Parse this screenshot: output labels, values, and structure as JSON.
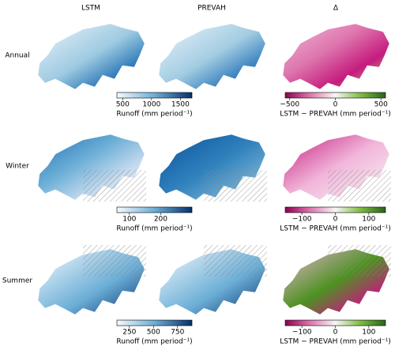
{
  "column_titles": [
    "LSTM",
    "PREVAH",
    "Δ"
  ],
  "rows": [
    {
      "label": "Annual",
      "runoff_colorbar": {
        "label": "Runoff (mm period⁻¹)",
        "lim": [
          400,
          1700
        ],
        "ticks": [
          500,
          1000,
          1500
        ]
      },
      "delta_colorbar": {
        "label": "LSTM − PREVAH (mm period⁻¹)",
        "lim": [
          -550,
          550
        ],
        "ticks": [
          {
            "value": -500,
            "label": "−500"
          },
          0,
          500
        ]
      }
    },
    {
      "label": "Winter",
      "runoff_colorbar": {
        "label": "Runoff (mm period⁻¹)",
        "lim": [
          60,
          300
        ],
        "ticks": [
          100,
          200
        ]
      },
      "delta_colorbar": {
        "label": "LSTM − PREVAH (mm period⁻¹)",
        "lim": [
          -150,
          150
        ],
        "ticks": [
          {
            "value": -100,
            "label": "−100"
          },
          0,
          100
        ]
      }
    },
    {
      "label": "Summer",
      "runoff_colorbar": {
        "label": "Runoff (mm period⁻¹)",
        "lim": [
          120,
          900
        ],
        "ticks": [
          250,
          500,
          750
        ]
      },
      "delta_colorbar": {
        "label": "LSTM − PREVAH (mm period⁻¹)",
        "lim": [
          -150,
          150
        ],
        "ticks": [
          {
            "value": -100,
            "label": "−100"
          },
          0,
          100
        ]
      }
    }
  ]
}
